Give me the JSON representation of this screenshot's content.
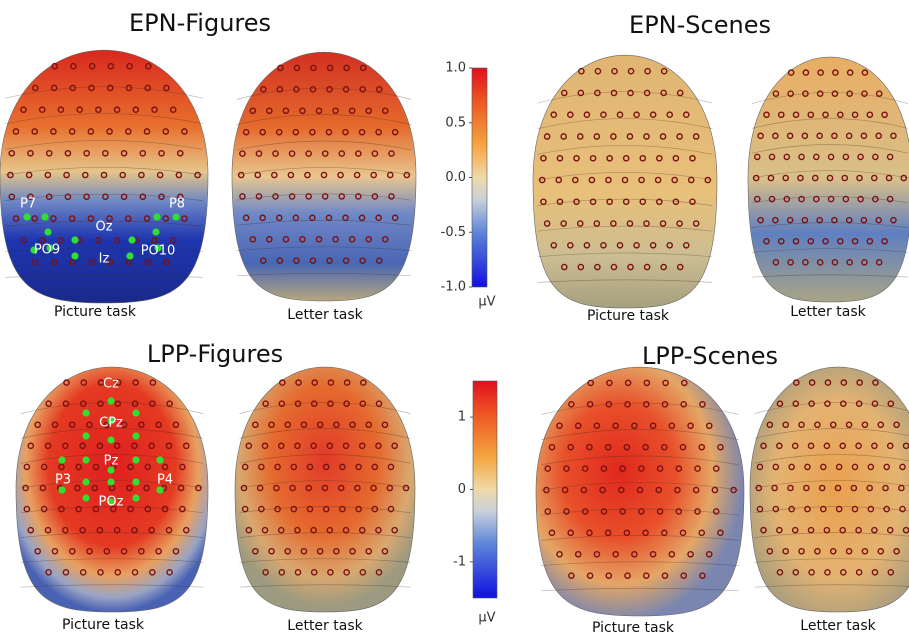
{
  "panels": [
    {
      "title": "EPN-Figures",
      "maps": [
        {
          "label": "Picture task"
        },
        {
          "label": "Letter task"
        }
      ],
      "electrodes": [
        "P7",
        "P8",
        "Oz",
        "PO9",
        "Iz",
        "PO10"
      ]
    },
    {
      "title": "EPN-Scenes",
      "maps": [
        {
          "label": "Picture task"
        },
        {
          "label": "Letter task"
        }
      ]
    },
    {
      "title": "LPP-Figures",
      "maps": [
        {
          "label": "Picture task"
        },
        {
          "label": "Letter task"
        }
      ],
      "electrodes": [
        "Cz",
        "CPz",
        "Pz",
        "P3",
        "P4",
        "POz"
      ]
    },
    {
      "title": "LPP-Scenes",
      "maps": [
        {
          "label": "Picture task"
        },
        {
          "label": "Letter task"
        }
      ]
    }
  ],
  "colorbars": [
    {
      "lim": [
        -1,
        1
      ],
      "ticks": [
        {
          "value": 1,
          "label": "1.0"
        },
        {
          "value": 0.5,
          "label": "0.5"
        },
        {
          "value": 0,
          "label": "0.0"
        },
        {
          "value": -0.5,
          "label": "-0.5"
        },
        {
          "value": -1,
          "label": "-1.0"
        }
      ],
      "unit": "µV"
    },
    {
      "lim": [
        -1.5,
        1.5
      ],
      "ticks": [
        1,
        0,
        -1
      ],
      "unit": "µV"
    }
  ]
}
